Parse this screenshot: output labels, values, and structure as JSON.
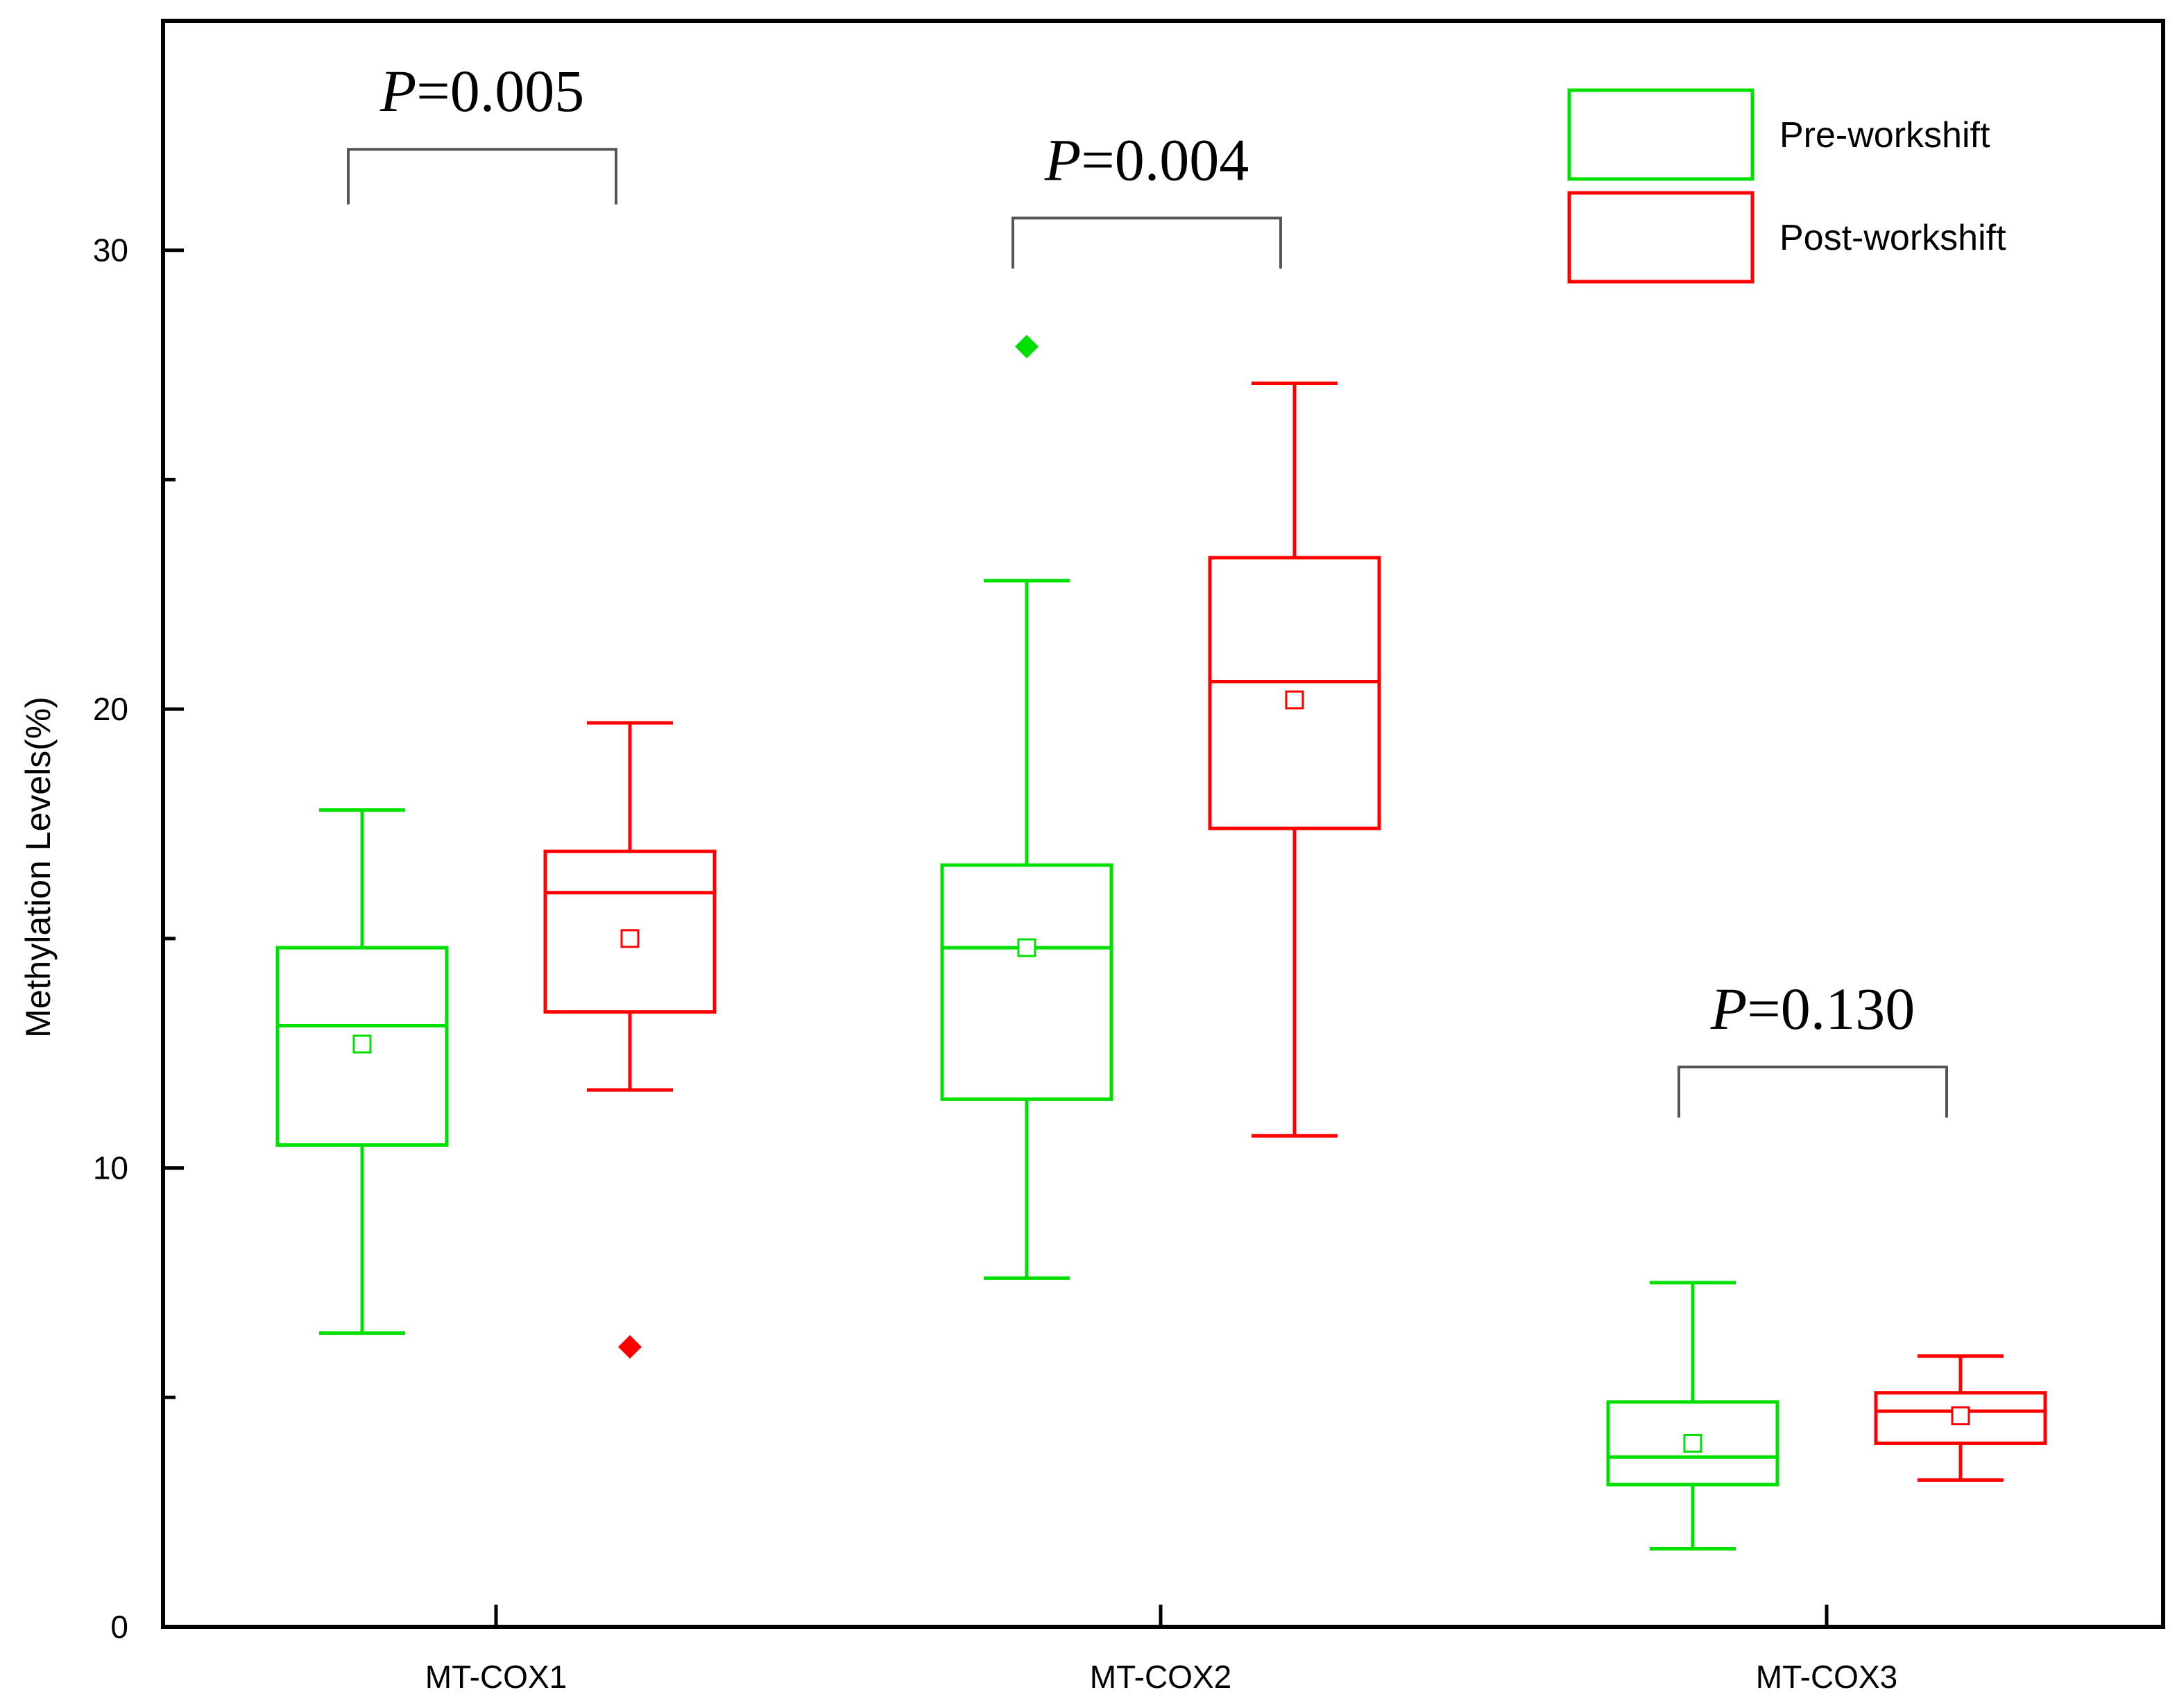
{
  "chart_data": {
    "type": "boxplot",
    "ylabel": "Methylation Levels(%)",
    "ylim": [
      0,
      35
    ],
    "yticks": [
      0,
      10,
      20,
      30
    ],
    "ytick_labels": [
      "0",
      "10",
      "20",
      "30"
    ],
    "categories": [
      "MT-COX1",
      "MT-COX2",
      "MT-COX3"
    ],
    "legend_position": "top-right",
    "series": [
      {
        "name": "Pre-workshift",
        "color": "#00e000",
        "boxes": [
          {
            "category": "MT-COX1",
            "whisker_low": 6.4,
            "q1": 10.5,
            "median": 13.1,
            "q3": 14.8,
            "whisker_high": 17.8,
            "mean": 12.7,
            "outliers": []
          },
          {
            "category": "MT-COX2",
            "whisker_low": 7.6,
            "q1": 11.5,
            "median": 14.8,
            "q3": 16.6,
            "whisker_high": 22.8,
            "mean": 14.8,
            "outliers": [
              27.9
            ]
          },
          {
            "category": "MT-COX3",
            "whisker_low": 1.7,
            "q1": 3.1,
            "median": 3.7,
            "q3": 4.9,
            "whisker_high": 7.5,
            "mean": 4.0,
            "outliers": []
          }
        ]
      },
      {
        "name": "Post-workshift",
        "color": "#ff0000",
        "boxes": [
          {
            "category": "MT-COX1",
            "whisker_low": 11.7,
            "q1": 13.4,
            "median": 16.0,
            "q3": 16.9,
            "whisker_high": 19.7,
            "mean": 15.0,
            "outliers": [
              6.1
            ]
          },
          {
            "category": "MT-COX2",
            "whisker_low": 10.7,
            "q1": 17.4,
            "median": 20.6,
            "q3": 23.3,
            "whisker_high": 27.1,
            "mean": 20.2,
            "outliers": []
          },
          {
            "category": "MT-COX3",
            "whisker_low": 3.2,
            "q1": 4.0,
            "median": 4.7,
            "q3": 5.1,
            "whisker_high": 5.9,
            "mean": 4.6,
            "outliers": []
          }
        ]
      }
    ],
    "annotations": [
      {
        "category": "MT-COX1",
        "p_symbol": "P",
        "p_text": "=0.005",
        "bracket_y": 32.2,
        "bracket_bottom": 31.0
      },
      {
        "category": "MT-COX2",
        "p_symbol": "P",
        "p_text": "=0.004",
        "bracket_y": 30.7,
        "bracket_bottom": 29.6
      },
      {
        "category": "MT-COX3",
        "p_symbol": "P",
        "p_text": "=0.130",
        "bracket_y": 12.2,
        "bracket_bottom": 11.1
      }
    ]
  }
}
